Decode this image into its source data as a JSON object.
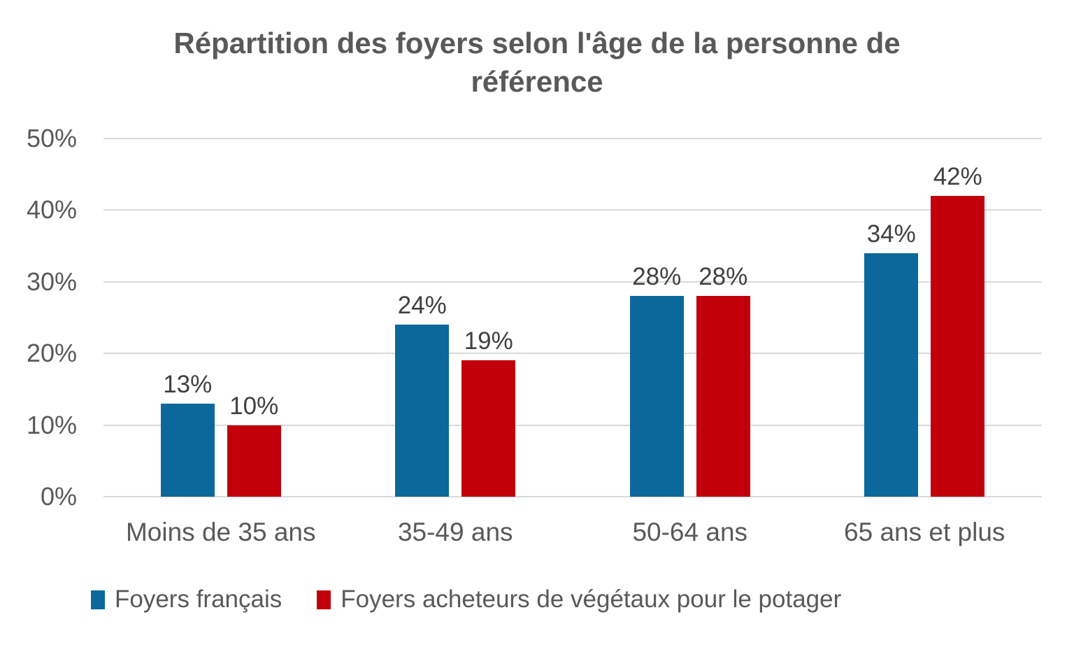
{
  "chart_data": {
    "type": "bar",
    "title": "Répartition des foyers selon l'âge de la personne de référence",
    "categories": [
      "Moins de 35 ans",
      "35-49 ans",
      "50-64 ans",
      "65 ans et plus"
    ],
    "series": [
      {
        "name": "Foyers français",
        "color": "#0B689B",
        "values": [
          13,
          24,
          28,
          34
        ],
        "labels": [
          "13%",
          "24%",
          "28%",
          "34%"
        ]
      },
      {
        "name": "Foyers acheteurs de végétaux pour le potager",
        "color": "#C2000B",
        "values": [
          10,
          19,
          28,
          42
        ],
        "labels": [
          "10%",
          "19%",
          "28%",
          "42%"
        ]
      }
    ],
    "ylim": [
      0,
      50
    ],
    "yticks": [
      {
        "value": 0,
        "label": "0%"
      },
      {
        "value": 10,
        "label": "10%"
      },
      {
        "value": 20,
        "label": "20%"
      },
      {
        "value": 30,
        "label": "30%"
      },
      {
        "value": 40,
        "label": "40%"
      },
      {
        "value": 50,
        "label": "50%"
      }
    ],
    "grid": "horizontal",
    "legend_position": "bottom",
    "gridline_color": "#D9D9D9",
    "text_color": "#595959",
    "data_label_color": "#404040",
    "background_color": "#FFFFFF"
  }
}
